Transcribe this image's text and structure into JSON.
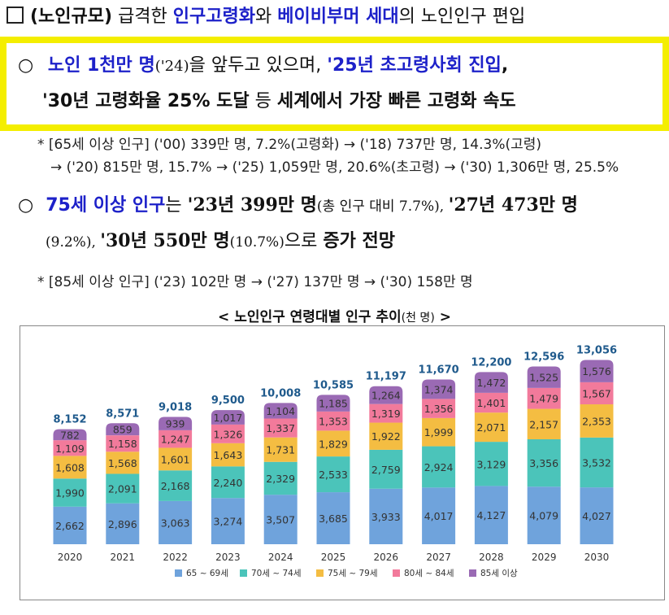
{
  "heading": {
    "checkbox": "□",
    "tag": "(노인규모)",
    "t1": " 급격한 ",
    "k1": "인구고령화",
    "t2": "와 ",
    "k2": "베이비부머 세대",
    "t3": "의 노인인구 편입"
  },
  "highlight": {
    "bullet": "○",
    "l1_a": "노인 1천만 명",
    "l1_b": "('24)",
    "l1_c": "을 앞두고 있으며, ",
    "l1_d": "'25년 초고령사회 진입",
    "l1_e": ",",
    "l2_a": "'30년 고령화율 25% 도달",
    "l2_b": " 등 ",
    "l2_c": "세계에서 가장 빠른 고령화 속도"
  },
  "note1": {
    "line1": "* [65세 이상 인구] ('00) 339만 명, 7.2%(고령화) → ('18) 737만 명, 14.3%(고령)",
    "line2": "→ ('20) 815만 명, 15.7% → ('25) 1,059만 명, 20.6%(초고령) → ('30) 1,306만 명, 25.5%"
  },
  "section2": {
    "bullet": "○",
    "a": "75세 이상 인구",
    "b": "는 ",
    "c": "'23년 399만 명",
    "d": "(총 인구 대비 7.7%), ",
    "e": "'27년 473만 명",
    "f": "(9.2%), ",
    "g": "'30년 550만 명",
    "h": "(10.7%)",
    "i": "으로 ",
    "j": "증가 전망"
  },
  "note2": "* [85세 이상 인구] ('23) 102만 명 → ('27) 137만 명 → ('30) 158만 명",
  "chart_title": {
    "main": "< 노인인구 연령대별 인구 추이",
    "unit": "(천 명)",
    "end": " >"
  },
  "chart_data": {
    "type": "bar",
    "stacked": true,
    "categories": [
      "2020",
      "2021",
      "2022",
      "2023",
      "2024",
      "2025",
      "2026",
      "2027",
      "2028",
      "2029",
      "2030"
    ],
    "series": [
      {
        "name": "65 ~ 69세",
        "color": "#6fa3dc",
        "values": [
          2662,
          2896,
          3063,
          3274,
          3507,
          3685,
          3933,
          4017,
          4127,
          4079,
          4027
        ]
      },
      {
        "name": "70세 ~ 74세",
        "color": "#4bc4ba",
        "values": [
          1990,
          2091,
          2168,
          2240,
          2329,
          2533,
          2759,
          2924,
          3129,
          3356,
          3532
        ]
      },
      {
        "name": "75세 ~ 79세",
        "color": "#f4bd42",
        "values": [
          1608,
          1568,
          1601,
          1643,
          1731,
          1829,
          1922,
          1999,
          2071,
          2157,
          2353
        ]
      },
      {
        "name": "80세 ~ 84세",
        "color": "#f27a9b",
        "values": [
          1109,
          1158,
          1247,
          1326,
          1337,
          1353,
          1319,
          1356,
          1401,
          1479,
          1567
        ]
      },
      {
        "name": "85세 이상",
        "color": "#9a6ab4",
        "values": [
          782,
          859,
          939,
          1017,
          1104,
          1185,
          1264,
          1374,
          1472,
          1525,
          1576
        ]
      }
    ],
    "totals": [
      "8,152",
      "8,571",
      "9,018",
      "9,500",
      "10,008",
      "10,585",
      "11,197",
      "11,670",
      "12,200",
      "12,596",
      "13,056"
    ],
    "total_color": "#1f5a8c",
    "legend_position": "bottom",
    "grid": false
  }
}
